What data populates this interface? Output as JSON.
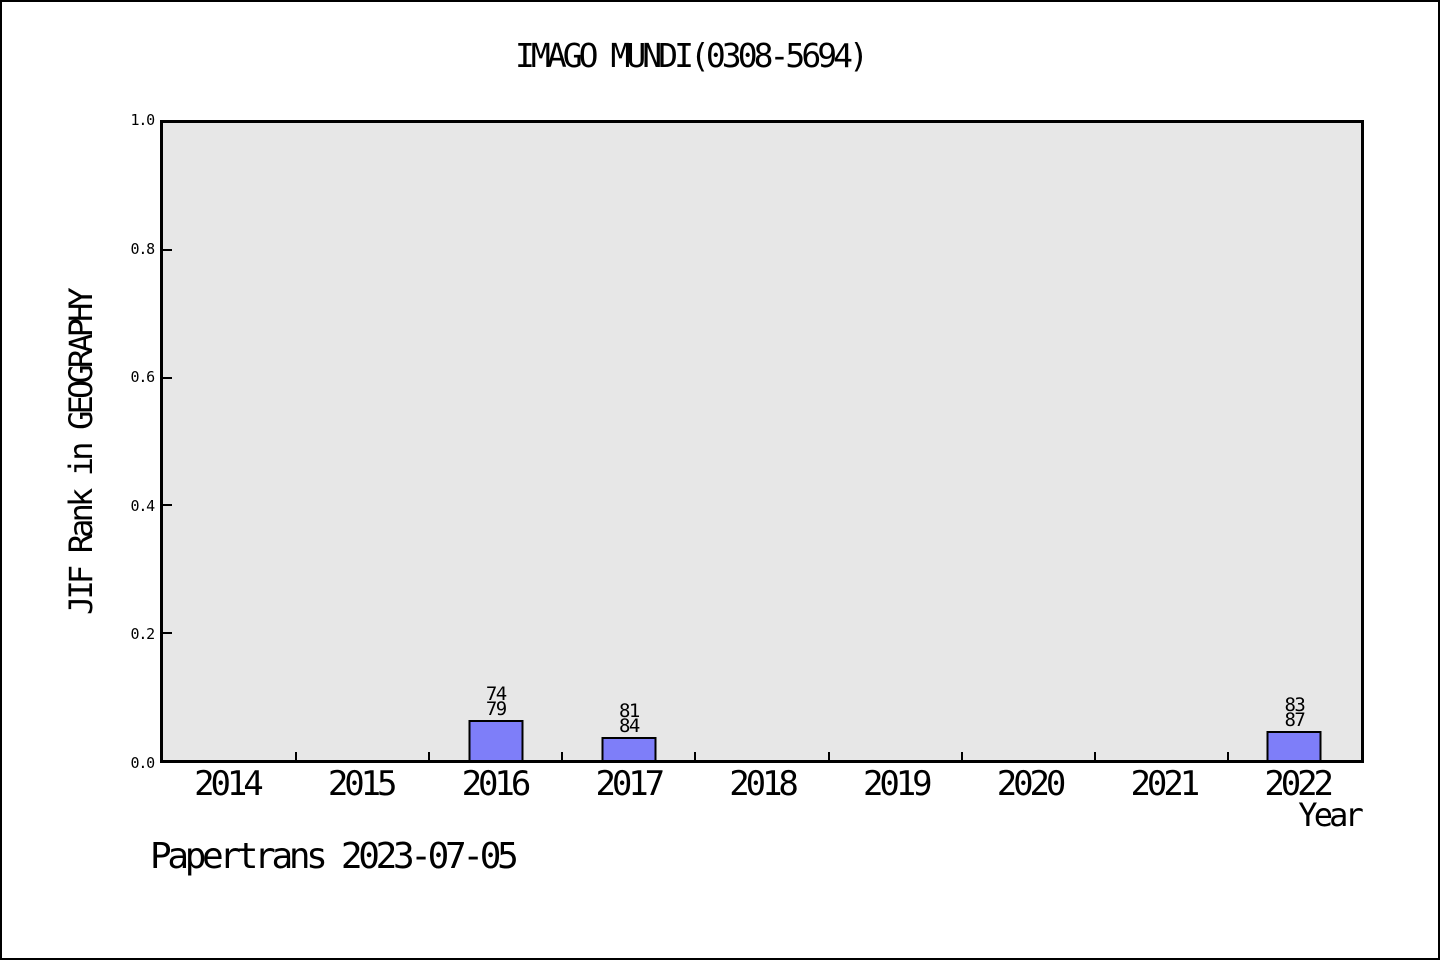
{
  "chart_data": {
    "type": "bar",
    "title": "IMAGO MUNDI(0308-5694)",
    "xlabel": "Year",
    "ylabel": "JIF Rank in GEOGRAPHY",
    "ylim": [
      0.0,
      1.0
    ],
    "yticks": [
      1.0,
      0.8,
      0.6,
      0.4,
      0.2,
      0.0
    ],
    "categories": [
      "2014",
      "2015",
      "2016",
      "2017",
      "2018",
      "2019",
      "2020",
      "2021",
      "2022"
    ],
    "bars": [
      {
        "category": "2016",
        "rank": 74,
        "out_of": 79,
        "bar_height": 0.063
      },
      {
        "category": "2017",
        "rank": 81,
        "out_of": 84,
        "bar_height": 0.036
      },
      {
        "category": "2022",
        "rank": 83,
        "out_of": 87,
        "bar_height": 0.046
      }
    ],
    "grid": false,
    "legend": false,
    "layout": {
      "plot_background": "#e7e7e7",
      "bar_fill": "#7e7ef9",
      "bar_edge": "#000000",
      "axis_color": "#000000",
      "text_color": "#000000"
    }
  },
  "footer": {
    "text": "Papertrans 2023-07-05"
  }
}
